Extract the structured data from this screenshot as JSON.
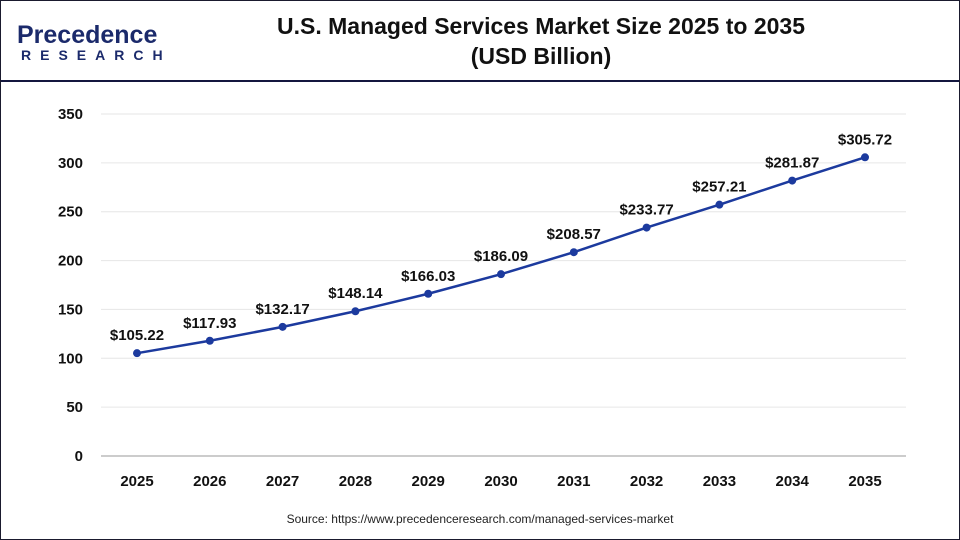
{
  "logo": {
    "line1": "Precedence",
    "line2": "RESEARCH"
  },
  "chart_data": {
    "type": "line",
    "title": "U.S. Managed Services Market Size 2025 to 2035 (USD Billion)",
    "title_lines": [
      "U.S. Managed Services Market Size 2025 to 2035",
      "(USD Billion)"
    ],
    "categories": [
      "2025",
      "2026",
      "2027",
      "2028",
      "2029",
      "2030",
      "2031",
      "2032",
      "2033",
      "2034",
      "2035"
    ],
    "values": [
      105.22,
      117.93,
      132.17,
      148.14,
      166.03,
      186.09,
      208.57,
      233.77,
      257.21,
      281.87,
      305.72
    ],
    "data_labels": [
      "$105.22",
      "$117.93",
      "$132.17",
      "$148.14",
      "$166.03",
      "$186.09",
      "$208.57",
      "$233.77",
      "$257.21",
      "$281.87",
      "$305.72"
    ],
    "xlabel": "",
    "ylabel": "",
    "ylim": [
      0,
      350
    ],
    "yticks": [
      0,
      50,
      100,
      150,
      200,
      250,
      300,
      350
    ],
    "grid": true,
    "line_color": "#1c3a9e"
  },
  "source": "Source: https://www.precedenceresearch.com/managed-services-market"
}
